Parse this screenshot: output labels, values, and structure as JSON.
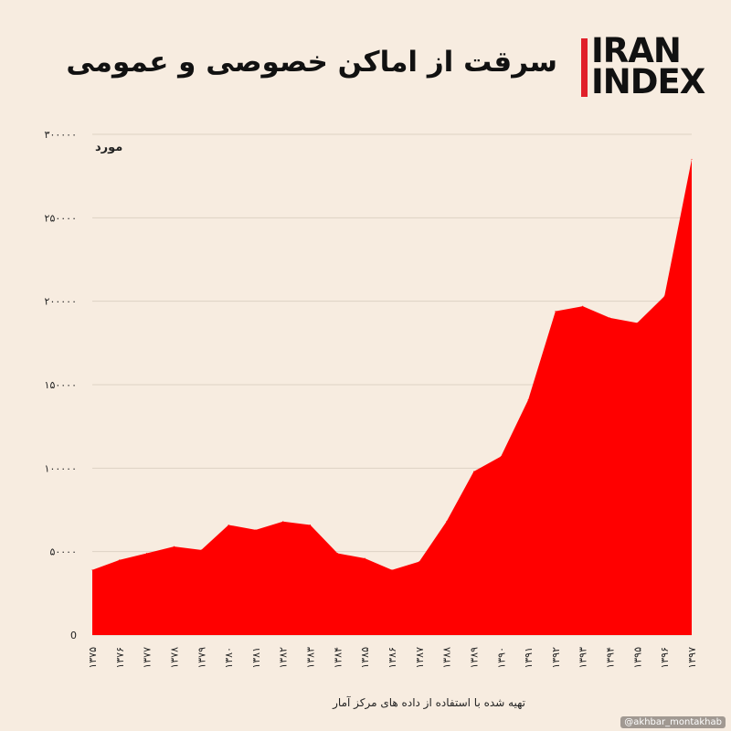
{
  "header": {
    "title": "سرقت از اماکن خصوصی و عمومی",
    "logo_line1": "IRAN",
    "logo_line2": "INDEX"
  },
  "footer": {
    "source": "تهیه شده با استفاده از داده های مرکز آمار",
    "handle": "@akhbar_montakhab"
  },
  "colors": {
    "fill": "#ff0000",
    "background": "#f7ece0",
    "logo_accent": "#e0202a"
  },
  "chart_data": {
    "type": "area",
    "ylabel": "مورد",
    "ylim": [
      0,
      300000
    ],
    "yticks": [
      0,
      50000,
      100000,
      150000,
      200000,
      250000,
      300000
    ],
    "ytick_labels": [
      "0",
      "۵۰۰۰۰",
      "۱۰۰۰۰۰",
      "۱۵۰۰۰۰",
      "۲۰۰۰۰۰",
      "۲۵۰۰۰۰",
      "۳۰۰۰۰۰"
    ],
    "grid": true,
    "categories": [
      "۱۳۷۵",
      "۱۳۷۶",
      "۱۳۷۷",
      "۱۳۷۸",
      "۱۳۷۹",
      "۱۳۸۰",
      "۱۳۸۱",
      "۱۳۸۲",
      "۱۳۸۳",
      "۱۳۸۴",
      "۱۳۸۵",
      "۱۳۸۶",
      "۱۳۸۷",
      "۱۳۸۸",
      "۱۳۸۹",
      "۱۳۹۰",
      "۱۳۹۱",
      "۱۳۹۲",
      "۱۳۹۳",
      "۱۳۹۴",
      "۱۳۹۵",
      "۱۳۹۶",
      "۱۳۹۷"
    ],
    "values": [
      39000,
      45000,
      49000,
      53000,
      51000,
      66000,
      63000,
      68000,
      66000,
      49000,
      46000,
      39000,
      44000,
      68000,
      98000,
      107000,
      141000,
      194000,
      197000,
      190000,
      187000,
      203000,
      285000
    ]
  }
}
